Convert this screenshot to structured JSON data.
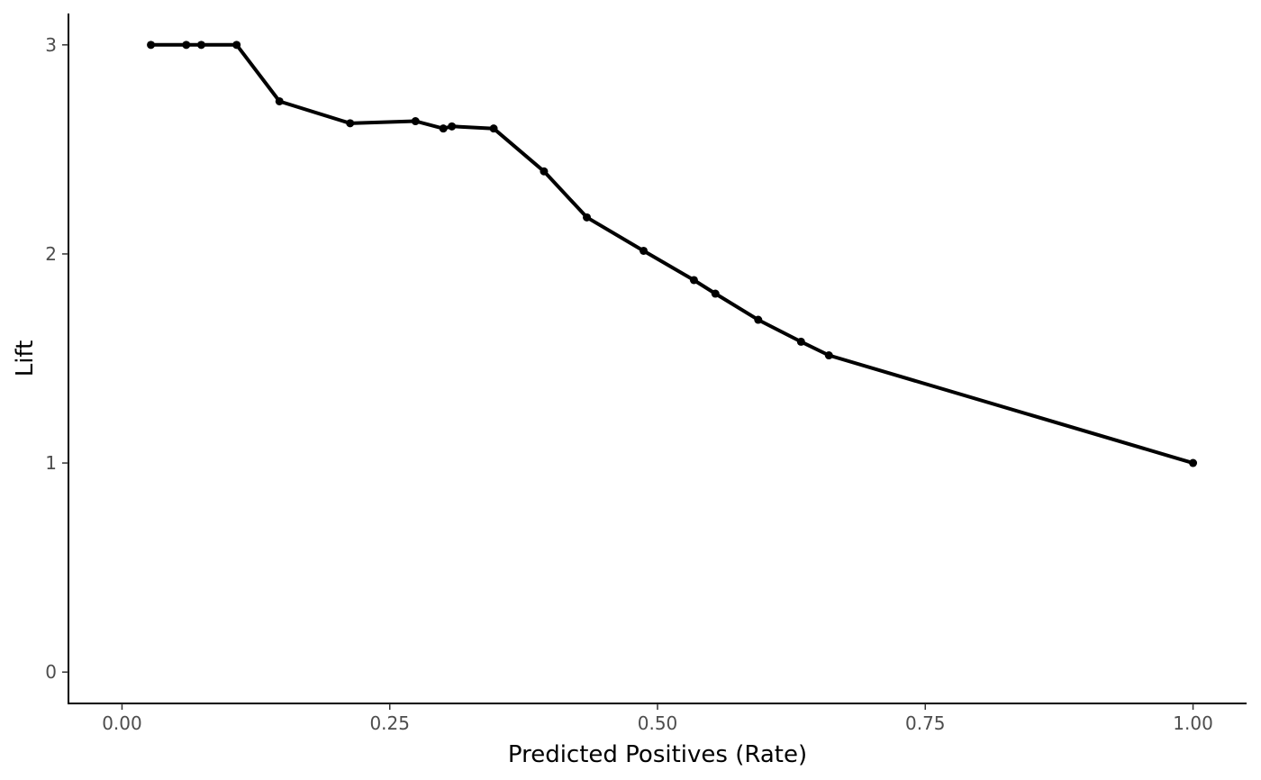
{
  "chart_data": {
    "type": "line",
    "title": "",
    "xlabel": "Predicted Positives (Rate)",
    "ylabel": "Lift",
    "xlim": [
      -0.05,
      1.05
    ],
    "ylim": [
      -0.15,
      3.15
    ],
    "x_ticks": [
      0,
      0.25,
      0.5,
      0.75,
      1
    ],
    "x_tick_labels": [
      "0.00",
      "0.25",
      "0.50",
      "0.75",
      "1.00"
    ],
    "y_ticks": [
      0,
      1,
      2,
      3
    ],
    "y_tick_labels": [
      "0",
      "1",
      "2",
      "3"
    ],
    "grid": false,
    "legend": "none",
    "line_color": "#000000",
    "series": [
      {
        "markers": true,
        "x": [
          0.027,
          0.06,
          0.074,
          0.107,
          0.147,
          0.213,
          0.274,
          0.3,
          0.308,
          0.347,
          0.394,
          0.434,
          0.487,
          0.534,
          0.554,
          0.594,
          0.634,
          0.66,
          1.0
        ],
        "y": [
          3.0,
          3.0,
          3.0,
          3.0,
          2.73,
          2.625,
          2.635,
          2.6,
          2.61,
          2.6,
          2.395,
          2.175,
          2.015,
          1.875,
          1.81,
          1.685,
          1.58,
          1.515,
          1.0
        ]
      }
    ]
  }
}
